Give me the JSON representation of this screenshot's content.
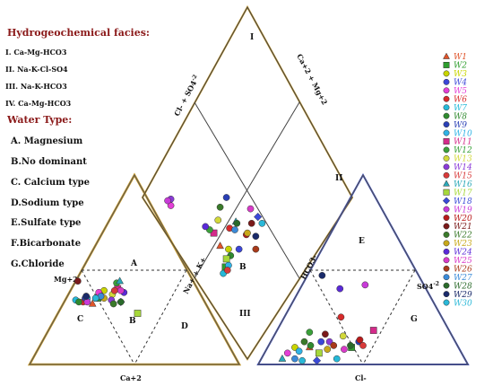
{
  "chart_data": {
    "type": "scatter",
    "plot": "piper-diagram",
    "left_header": {
      "facies_title": "Hydrogeochemical facies:",
      "facies": [
        {
          "numeral": "I.",
          "name": "Ca-Mg-HCO3"
        },
        {
          "numeral": "II.",
          "name": "Na-K-Cl-SO4"
        },
        {
          "numeral": "III.",
          "name": "Na-K-HCO3"
        },
        {
          "numeral": "IV.",
          "name": "Ca-Mg-HCO3"
        }
      ],
      "water_type_title": "Water Type:",
      "water_types": [
        "A. Magnesium",
        "B.No dominant",
        "C. Calcium type",
        "D.Sodium type",
        "E.Sulfate type",
        "F.Bicarbonate",
        "G.Chloride"
      ]
    },
    "axes": {
      "cation_apex": "Mg+2",
      "cation_bottom": "Ca+2",
      "cation_side": "Na+ + K+",
      "anion_side": "HCO3-",
      "anion_apex": "SO4",
      "anion_apex_sup": "-2",
      "anion_bottom": "Cl-",
      "diamond_left": "Cl- + SO4",
      "diamond_left_sup": "-2",
      "diamond_right": "Ca+2 + Mg+2"
    },
    "zone_labels": {
      "cation": [
        "A",
        "B",
        "C",
        "D"
      ],
      "anion": [
        "E",
        "G"
      ],
      "diamond": [
        "I",
        "II",
        "III",
        "B"
      ]
    },
    "series_style": [
      {
        "name": "W1",
        "color": "#e0542a",
        "marker": "triangle"
      },
      {
        "name": "W2",
        "color": "#2e9e2e",
        "marker": "square"
      },
      {
        "name": "W3",
        "color": "#c8d400",
        "marker": "circle"
      },
      {
        "name": "W4",
        "color": "#3b46d8",
        "marker": "circle"
      },
      {
        "name": "W5",
        "color": "#e33fd6",
        "marker": "circle"
      },
      {
        "name": "W6",
        "color": "#d62a2a",
        "marker": "circle"
      },
      {
        "name": "W7",
        "color": "#25b9d8",
        "marker": "circle"
      },
      {
        "name": "W8",
        "color": "#2f8a2f",
        "marker": "circle"
      },
      {
        "name": "W9",
        "color": "#2a3fb5",
        "marker": "circle"
      },
      {
        "name": "W10",
        "color": "#2fb3e6",
        "marker": "circle"
      },
      {
        "name": "W11",
        "color": "#d42a8a",
        "marker": "square"
      },
      {
        "name": "W12",
        "color": "#3aa03a",
        "marker": "circle"
      },
      {
        "name": "W13",
        "color": "#d2d83a",
        "marker": "circle"
      },
      {
        "name": "W14",
        "color": "#8a3ad8",
        "marker": "circle"
      },
      {
        "name": "W15",
        "color": "#d83a3a",
        "marker": "circle"
      },
      {
        "name": "W16",
        "color": "#2aa8b8",
        "marker": "triangle"
      },
      {
        "name": "W17",
        "color": "#a6d83a",
        "marker": "square"
      },
      {
        "name": "W18",
        "color": "#3a4ad8",
        "marker": "diamond"
      },
      {
        "name": "W19",
        "color": "#c83ad8",
        "marker": "circle"
      },
      {
        "name": "W20",
        "color": "#b81a1a",
        "marker": "circle"
      },
      {
        "name": "W21",
        "color": "#7a1a1a",
        "marker": "circle"
      },
      {
        "name": "W22",
        "color": "#3a7a2a",
        "marker": "circle"
      },
      {
        "name": "W23",
        "color": "#c8a81a",
        "marker": "circle"
      },
      {
        "name": "W24",
        "color": "#5a2ad8",
        "marker": "circle"
      },
      {
        "name": "W25",
        "color": "#d83ac8",
        "marker": "circle"
      },
      {
        "name": "W26",
        "color": "#a83a1a",
        "marker": "circle"
      },
      {
        "name": "W27",
        "color": "#3a8ad8",
        "marker": "circle"
      },
      {
        "name": "W28",
        "color": "#2a6a2a",
        "marker": "circle"
      },
      {
        "name": "W29",
        "color": "#1a2a6a",
        "marker": "circle"
      },
      {
        "name": "W30",
        "color": "#2ab8d8",
        "marker": "circle"
      }
    ],
    "cation_points": [
      {
        "series": 1,
        "ca": 54,
        "mg": 32
      },
      {
        "series": 2,
        "ca": 50,
        "mg": 35
      },
      {
        "series": 3,
        "ca": 45,
        "mg": 39
      },
      {
        "series": 4,
        "ca": 48,
        "mg": 37
      },
      {
        "series": 5,
        "ca": 48,
        "mg": 38
      },
      {
        "series": 6,
        "ca": 58,
        "mg": 33
      },
      {
        "series": 7,
        "ca": 61,
        "mg": 34
      },
      {
        "series": 8,
        "ca": 60,
        "mg": 33
      },
      {
        "series": 9,
        "ca": 56,
        "mg": 35
      },
      {
        "series": 10,
        "ca": 55,
        "mg": 35
      },
      {
        "series": 11,
        "ca": 38,
        "mg": 40
      },
      {
        "series": 12,
        "ca": 37,
        "mg": 43
      },
      {
        "series": 13,
        "ca": 42,
        "mg": 37
      },
      {
        "series": 14,
        "ca": 44,
        "mg": 34
      },
      {
        "series": 15,
        "ca": 40,
        "mg": 39
      },
      {
        "series": 16,
        "ca": 35,
        "mg": 44
      },
      {
        "series": 17,
        "ca": 35,
        "mg": 27
      },
      {
        "series": 18,
        "ca": 40,
        "mg": 33
      },
      {
        "series": 19,
        "ca": 56,
        "mg": 33
      },
      {
        "series": 20,
        "ca": 55,
        "mg": 36
      },
      {
        "series": 21,
        "ca": 55,
        "mg": 44
      },
      {
        "series": 22,
        "ca": 44,
        "mg": 32
      },
      {
        "series": 23,
        "ca": 47,
        "mg": 35
      },
      {
        "series": 24,
        "ca": 36,
        "mg": 38
      },
      {
        "series": 25,
        "ca": 37,
        "mg": 39
      },
      {
        "series": 26,
        "ca": 51,
        "mg": 35
      },
      {
        "series": 27,
        "ca": 48,
        "mg": 36
      },
      {
        "series": 28,
        "ca": 40,
        "mg": 33
      },
      {
        "series": 29,
        "ca": 55,
        "mg": 36
      },
      {
        "series": 30,
        "ca": 51,
        "mg": 35
      }
    ],
    "anion_points": [
      {
        "series": 1,
        "cl": 20,
        "so4": 9
      },
      {
        "series": 2,
        "cl": 40,
        "so4": 9
      },
      {
        "series": 3,
        "cl": 13,
        "so4": 9
      },
      {
        "series": 4,
        "cl": 24,
        "so4": 12
      },
      {
        "series": 5,
        "cl": 11,
        "so4": 6
      },
      {
        "series": 6,
        "cl": 27,
        "so4": 25
      },
      {
        "series": 7,
        "cl": 36,
        "so4": 3
      },
      {
        "series": 8,
        "cl": 20,
        "so4": 10
      },
      {
        "series": 9,
        "cl": 42,
        "so4": 12
      },
      {
        "series": 10,
        "cl": 16,
        "so4": 7
      },
      {
        "series": 11,
        "cl": 46,
        "so4": 18
      },
      {
        "series": 12,
        "cl": 16,
        "so4": 17
      },
      {
        "series": 13,
        "cl": 33,
        "so4": 15
      },
      {
        "series": 14,
        "cl": 28,
        "so4": 12
      },
      {
        "series": 15,
        "cl": 45,
        "so4": 10
      },
      {
        "series": 16,
        "cl": 10,
        "so4": 3
      },
      {
        "series": 17,
        "cl": 26,
        "so4": 6
      },
      {
        "series": 18,
        "cl": 27,
        "so4": 2
      },
      {
        "series": 19,
        "cl": 30,
        "so4": 42
      },
      {
        "series": 20,
        "cl": 42,
        "so4": 13
      },
      {
        "series": 21,
        "cl": 24,
        "so4": 16
      },
      {
        "series": 22,
        "cl": 16,
        "so4": 12
      },
      {
        "series": 23,
        "cl": 29,
        "so4": 8
      },
      {
        "series": 24,
        "cl": 19,
        "so4": 40
      },
      {
        "series": 25,
        "cl": 37,
        "so4": 8
      },
      {
        "series": 26,
        "cl": 31,
        "so4": 10
      },
      {
        "series": 27,
        "cl": 16,
        "so4": 3
      },
      {
        "series": 28,
        "cl": 39,
        "so4": 10
      },
      {
        "series": 29,
        "cl": 7,
        "so4": 47
      },
      {
        "series": 30,
        "cl": 20,
        "so4": 2
      }
    ],
    "diamond_points": [
      {
        "series": 1,
        "cl_so4": 48,
        "na_k": 22
      },
      {
        "series": 2,
        "cl_so4": 39,
        "na_k": 18
      },
      {
        "series": 3,
        "cl_so4": 43,
        "na_k": 25
      },
      {
        "series": 4,
        "cl_so4": 38,
        "na_k": 30
      },
      {
        "series": 5,
        "cl_so4": 84,
        "na_k": 11
      },
      {
        "series": 6,
        "cl_so4": 49,
        "na_k": 32
      },
      {
        "series": 7,
        "cl_so4": 38,
        "na_k": 15
      },
      {
        "series": 8,
        "cl_so4": 40,
        "na_k": 24
      },
      {
        "series": 9,
        "cl_so4": 60,
        "na_k": 40
      },
      {
        "series": 10,
        "cl_so4": 38,
        "na_k": 20
      },
      {
        "series": 11,
        "cl_so4": 55,
        "na_k": 23
      },
      {
        "series": 12,
        "cl_so4": 58,
        "na_k": 22
      },
      {
        "series": 13,
        "cl_so4": 57,
        "na_k": 29
      },
      {
        "series": 14,
        "cl_so4": 86,
        "na_k": 13
      },
      {
        "series": 15,
        "cl_so4": 37,
        "na_k": 18
      },
      {
        "series": 16,
        "cl_so4": 48,
        "na_k": 37
      },
      {
        "series": 17,
        "cl_so4": 41,
        "na_k": 21
      },
      {
        "series": 18,
        "cl_so4": 39,
        "na_k": 49
      },
      {
        "series": 19,
        "cl_so4": 87,
        "na_k": 11
      },
      {
        "series": 20,
        "cl_so4": 39,
        "na_k": 38
      },
      {
        "series": 21,
        "cl_so4": 40,
        "na_k": 44
      },
      {
        "series": 22,
        "cl_so4": 60,
        "na_k": 34
      },
      {
        "series": 23,
        "cl_so4": 39,
        "na_k": 39
      },
      {
        "series": 24,
        "cl_so4": 61,
        "na_k": 21
      },
      {
        "series": 25,
        "cl_so4": 45,
        "na_k": 48
      },
      {
        "series": 26,
        "cl_so4": 30,
        "na_k": 38
      },
      {
        "series": 27,
        "cl_so4": 46,
        "na_k": 34
      },
      {
        "series": 28,
        "cl_so4": 47,
        "na_k": 37
      },
      {
        "series": 29,
        "cl_so4": 34,
        "na_k": 42
      },
      {
        "series": 30,
        "cl_so4": 35,
        "na_k": 49
      }
    ]
  }
}
